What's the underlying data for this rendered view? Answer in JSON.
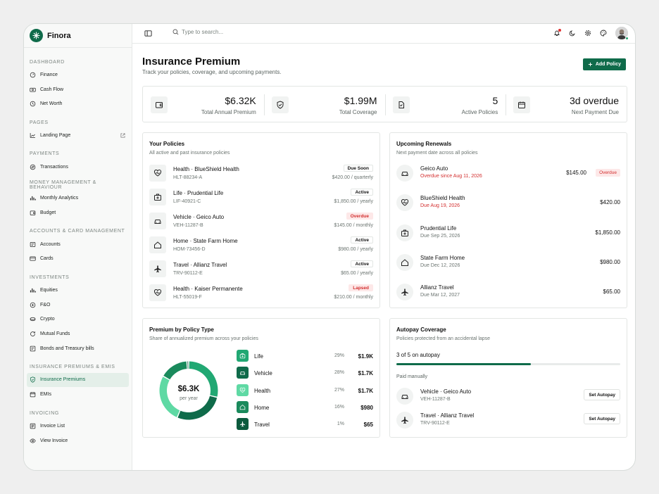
{
  "app": {
    "name": "Finora"
  },
  "sidebar": {
    "groups": [
      {
        "heading": "Dashboard",
        "items": [
          {
            "label": "Finance",
            "icon": "gauge-icon"
          },
          {
            "label": "Cash Flow",
            "icon": "cash-icon"
          },
          {
            "label": "Net Worth",
            "icon": "clock-icon"
          }
        ]
      },
      {
        "heading": "Pages",
        "items": [
          {
            "label": "Landing Page",
            "icon": "trend-icon"
          }
        ]
      },
      {
        "heading": "Payments",
        "items": [
          {
            "label": "Transactions",
            "icon": "exchange-icon"
          }
        ]
      },
      {
        "heading": "Money Management & Behaviour",
        "items": [
          {
            "label": "Monthly Analytics",
            "icon": "bar-chart-icon"
          },
          {
            "label": "Budget",
            "icon": "wallet-icon"
          }
        ]
      },
      {
        "heading": "Accounts & Card Management",
        "items": [
          {
            "label": "Accounts",
            "icon": "bank-icon"
          },
          {
            "label": "Cards",
            "icon": "card-icon"
          }
        ]
      },
      {
        "heading": "Investments",
        "items": [
          {
            "label": "Equities",
            "icon": "bar-chart-icon"
          },
          {
            "label": "F&O",
            "icon": "options-icon"
          },
          {
            "label": "Crypto",
            "icon": "coins-icon"
          },
          {
            "label": "Mutual Funds",
            "icon": "refresh-icon"
          },
          {
            "label": "Bonds and Treasury bills",
            "icon": "bond-icon"
          }
        ]
      },
      {
        "heading": "Insurance Premiums & EMIs",
        "items": [
          {
            "label": "Insurance Premiums",
            "icon": "shield-icon",
            "active": true
          },
          {
            "label": "EMIs",
            "icon": "calendar-icon"
          }
        ]
      },
      {
        "heading": "Invoicing",
        "items": [
          {
            "label": "Invoice List",
            "icon": "list-icon"
          },
          {
            "label": "View Invoice",
            "icon": "eye-icon"
          }
        ]
      }
    ]
  },
  "topbar": {
    "search_placeholder": "Type to search..."
  },
  "page": {
    "title": "Insurance Premium",
    "subtitle": "Track your policies, coverage, and upcoming payments.",
    "add_button": "Add Policy"
  },
  "stats": [
    {
      "value": "$6.32K",
      "label": "Total Annual Premium",
      "icon": "wallet-icon"
    },
    {
      "value": "$1.99M",
      "label": "Total Coverage",
      "icon": "shield-check-icon"
    },
    {
      "value": "5",
      "label": "Active Policies",
      "icon": "document-icon"
    },
    {
      "value": "3d overdue",
      "label": "Next Payment Due",
      "icon": "calendar-icon"
    }
  ],
  "policies": {
    "title": "Your Policies",
    "subtitle": "All active and past insurance policies",
    "rows": [
      {
        "name": "Health · BlueShield Health",
        "id": "HLT-88234-A",
        "status": "Due Soon",
        "amount": "$420.00 / quarterly",
        "icon": "heart-icon",
        "alert": false
      },
      {
        "name": "Life · Prudential Life",
        "id": "LIF-40921-C",
        "status": "Active",
        "amount": "$1,850.00 / yearly",
        "icon": "medical-bag-icon",
        "alert": false
      },
      {
        "name": "Vehicle · Geico Auto",
        "id": "VEH-11287-B",
        "status": "Overdue",
        "amount": "$145.00 / monthly",
        "icon": "car-icon",
        "alert": true
      },
      {
        "name": "Home · State Farm Home",
        "id": "HOM-73456-D",
        "status": "Active",
        "amount": "$980.00 / yearly",
        "icon": "home-icon",
        "alert": false
      },
      {
        "name": "Travel · Allianz Travel",
        "id": "TRV-90112-E",
        "status": "Active",
        "amount": "$65.00 / yearly",
        "icon": "plane-icon",
        "alert": false
      },
      {
        "name": "Health · Kaiser Permanente",
        "id": "HLT-55019-F",
        "status": "Lapsed",
        "amount": "$210.00 / monthly",
        "icon": "heart-icon",
        "alert": true
      }
    ]
  },
  "renewals": {
    "title": "Upcoming Renewals",
    "subtitle": "Next payment date across all policies",
    "rows": [
      {
        "name": "Geico Auto",
        "date": "Overdue since Aug 11, 2026",
        "amount": "$145.00",
        "badge": "Overdue",
        "icon": "car-icon",
        "alert": true
      },
      {
        "name": "BlueShield Health",
        "date": "Due Aug 19, 2026",
        "amount": "$420.00",
        "badge": "",
        "icon": "heart-icon",
        "alert": true
      },
      {
        "name": "Prudential Life",
        "date": "Due Sep 25, 2026",
        "amount": "$1,850.00",
        "badge": "",
        "icon": "medical-bag-icon",
        "alert": false
      },
      {
        "name": "State Farm Home",
        "date": "Due Dec 12, 2026",
        "amount": "$980.00",
        "badge": "",
        "icon": "home-icon",
        "alert": false
      },
      {
        "name": "Allianz Travel",
        "date": "Due Mar 12, 2027",
        "amount": "$65.00",
        "badge": "",
        "icon": "plane-icon",
        "alert": false
      }
    ]
  },
  "premium_by_type": {
    "title": "Premium by Policy Type",
    "subtitle": "Share of annualized premium across your policies",
    "center_value": "$6.3K",
    "center_label": "per year",
    "legend": [
      {
        "name": "Life",
        "pct": "29%",
        "amount": "$1.9K",
        "color": "#21a873",
        "icon": "medical-bag-icon",
        "share": 29
      },
      {
        "name": "Vehicle",
        "pct": "28%",
        "amount": "$1.7K",
        "color": "#0f6b4a",
        "icon": "car-icon",
        "share": 28
      },
      {
        "name": "Health",
        "pct": "27%",
        "amount": "$1.7K",
        "color": "#5fd9a4",
        "icon": "heart-icon",
        "share": 27
      },
      {
        "name": "Home",
        "pct": "16%",
        "amount": "$980",
        "color": "#1a8a5c",
        "icon": "home-icon",
        "share": 16
      },
      {
        "name": "Travel",
        "pct": "1%",
        "amount": "$65",
        "color": "#0b5a3d",
        "icon": "plane-icon",
        "share": 1
      }
    ]
  },
  "autopay": {
    "title": "Autopay Coverage",
    "subtitle": "Policies protected from an accidental lapse",
    "summary": "3 of 5 on autopay",
    "fraction": 0.6,
    "manual_heading": "Paid manually",
    "rows": [
      {
        "name": "Vehicle · Geico Auto",
        "id": "VEH-11287-B",
        "button": "Set Autopay",
        "icon": "car-icon"
      },
      {
        "name": "Travel · Allianz Travel",
        "id": "TRV-90112-E",
        "button": "Set Autopay",
        "icon": "plane-icon"
      }
    ]
  }
}
